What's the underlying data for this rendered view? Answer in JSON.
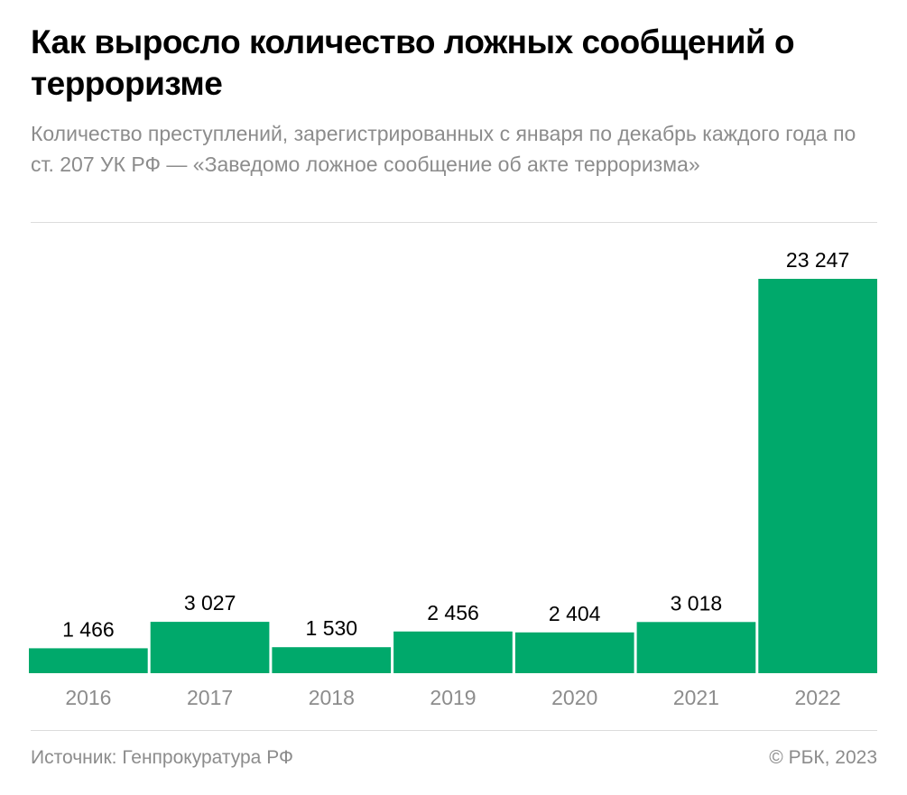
{
  "header": {
    "title": "Как выросло количество ложных сообщений о терроризме",
    "subtitle": "Количество преступлений, зарегистрированных с января по декабрь каждого года по ст. 207 УК РФ — «Заведомо ложное сообщение об акте терроризма»"
  },
  "footer": {
    "source": "Источник: Генпрокуратура РФ",
    "credit": "© РБК, 2023"
  },
  "colors": {
    "bar": "#00a96b",
    "value_label": "#000000",
    "category_label": "#8c8c8c"
  },
  "chart_data": {
    "type": "bar",
    "categories": [
      "2016",
      "2017",
      "2018",
      "2019",
      "2020",
      "2021",
      "2022"
    ],
    "values": [
      1466,
      3027,
      1530,
      2456,
      2404,
      3018,
      23247
    ],
    "value_labels": [
      "1 466",
      "3 027",
      "1 530",
      "2 456",
      "2 404",
      "3 018",
      "23 247"
    ],
    "xlabel": "",
    "ylabel": "",
    "ylim": [
      0,
      23247
    ],
    "grid": false,
    "legend": "none"
  }
}
